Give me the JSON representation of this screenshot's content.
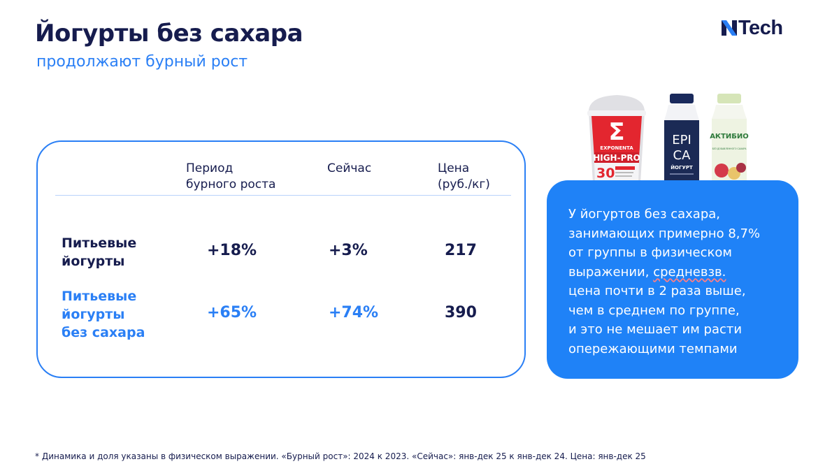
{
  "header": {
    "title": "Йогурты без сахара",
    "subtitle": "продолжают бурный рост",
    "logo_text": "Tech"
  },
  "table": {
    "columns": {
      "period_line1": "Период",
      "period_line2": "бурного роста",
      "now": "Сейчас",
      "price_line1": "Цена",
      "price_line2": "(руб./кг)"
    },
    "rows": [
      {
        "label_lines": [
          "Питьевые",
          "йогурты"
        ],
        "period": "+18%",
        "now": "+3%",
        "price": "217"
      },
      {
        "label_lines": [
          "Питьевые",
          "йогурты",
          "без сахара"
        ],
        "period": "+65%",
        "now": "+74%",
        "price": "390"
      }
    ]
  },
  "products": [
    {
      "name": "Exponenta High-Pro",
      "brand": "EXPONENTA",
      "line": "HIGH-PRO",
      "big_number": "30"
    },
    {
      "name": "Epica",
      "brand_line1": "EPI",
      "brand_line2": "CA",
      "product_type": "ЙОГУРТ"
    },
    {
      "name": "Актибио",
      "brand": "АКТИБИО",
      "tag": "БЕЗ ДОБАВЛЕННОГО САХАРА"
    }
  ],
  "info": {
    "line1": "У йогуртов без сахара,",
    "line2": "занимающих примерно 8,7%",
    "line3": "от группы в физическом",
    "line4_before": "выражении, ",
    "line4_underlined": "средневзв.",
    "line5": "цена почти в 2 раза выше,",
    "line6": "чем в среднем по группе,",
    "line7": "и это не мешает им расти",
    "line8": "опережающими темпами"
  },
  "footnote": "* Динамика и доля указаны в физическом выражении. «Бурный рост»: 2024 к 2023.  «Сейчас»: янв-дек 25 к янв-дек 24. Цена: янв-дек 25",
  "colors": {
    "navy": "#161c4e",
    "accent_blue": "#2a7ff5",
    "card_blue": "#1f82f7",
    "white": "#ffffff"
  }
}
